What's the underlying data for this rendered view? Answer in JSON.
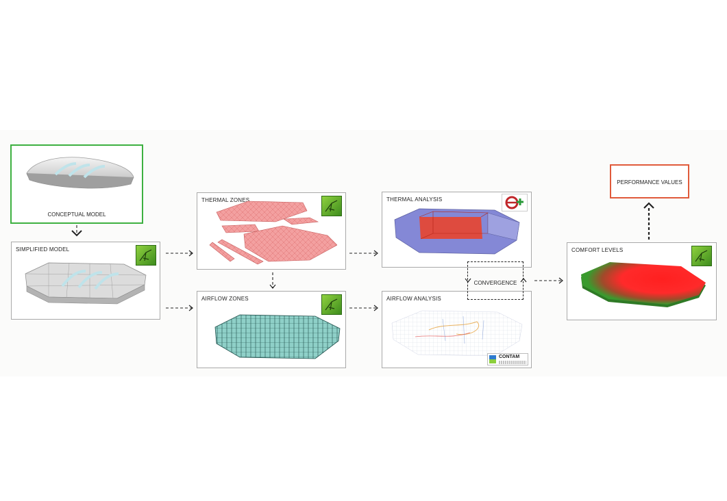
{
  "nodes": {
    "conceptual_model": "CONCEPTUAL MODEL",
    "simplified_model": "SIMPLIFIED MODEL",
    "thermal_zones": "THERMAL ZONES",
    "airflow_zones": "AIRFLOW ZONES",
    "thermal_analysis": "THERMAL ANALYSIS",
    "airflow_analysis": "AIRFLOW ANALYSIS",
    "convergence": "CONVERGENCE",
    "comfort_levels": "COMFORT LEVELS",
    "performance_values": "PERFORMANCE VALUES"
  },
  "logos": {
    "contam": "CONTAM"
  },
  "colors": {
    "concept_border": "#3db040",
    "performance_border": "#e05a3a",
    "thermal_zone_fill": "#f08a8a",
    "airflow_zone_fill": "#7fc9c2",
    "thermal_analysis_blue": "#7b7fd0",
    "thermal_analysis_red": "#e23a2a",
    "comfort_green": "#3a9a2e",
    "comfort_red": "#ff2a2a"
  },
  "icons": [
    "grasshopper-icon",
    "energyplus-icon",
    "contam-icon"
  ]
}
